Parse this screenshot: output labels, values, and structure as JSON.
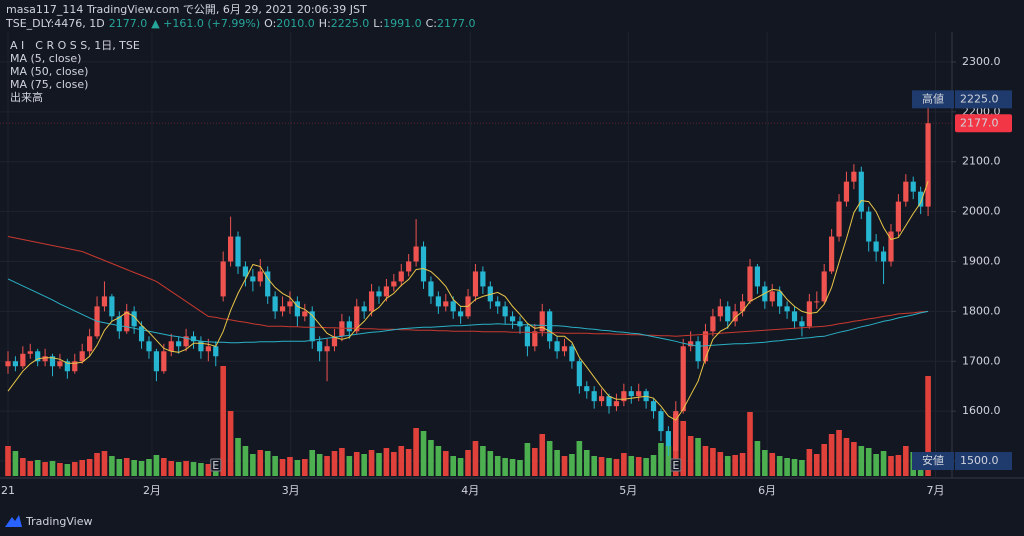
{
  "header": {
    "publisher": "masa117_114 TradingView.com で公開, 6月 29, 2021 20:06:39 JST",
    "symbol": "TSE_DLY:4476, 1D",
    "price": "2177.0",
    "change": "▲ +161.0 (+7.99%)",
    "ohlc": [
      {
        "key": "O:",
        "value": "2010.0"
      },
      {
        "key": "H:",
        "value": "2225.0"
      },
      {
        "key": "L:",
        "value": "1991.0"
      },
      {
        "key": "C:",
        "value": "2177.0"
      }
    ]
  },
  "footer": {
    "brand": "TradingView"
  },
  "chart_data": {
    "type": "candlestick",
    "title": "A I　C R O S S, 1日, TSE",
    "volume_name": "出来高",
    "up_color": "#ef5350",
    "down_color": "#26b6d2",
    "volume_up_color": "#e0413a",
    "volume_down_color": "#4caf50",
    "ylim": [
      1470,
      2364
    ],
    "yticks": [
      {
        "value": 1500,
        "label": "1500.0"
      },
      {
        "value": 1600,
        "label": "1600.0"
      },
      {
        "value": 1700,
        "label": "1700.0"
      },
      {
        "value": 1800,
        "label": "1800.0"
      },
      {
        "value": 1900,
        "label": "1900.0"
      },
      {
        "value": 2000,
        "label": "2000.0"
      },
      {
        "value": 2100,
        "label": "2100.0"
      },
      {
        "value": 2200,
        "label": "2200.0"
      },
      {
        "value": 2300,
        "label": "2300.0"
      }
    ],
    "xticks": [
      {
        "value": 0,
        "label": "21"
      },
      {
        "value": 19.4,
        "label": "2月"
      },
      {
        "value": 38.1,
        "label": "3月"
      },
      {
        "value": 62.3,
        "label": "4月"
      },
      {
        "value": 83.6,
        "label": "5月"
      },
      {
        "value": 102.3,
        "label": "6月"
      },
      {
        "value": 125,
        "label": "7月"
      }
    ],
    "grid": true,
    "events": [
      {
        "index": 28,
        "label": "E"
      },
      {
        "index": 90,
        "label": "E"
      }
    ],
    "high_marker": {
      "label": "高値",
      "value": 2225,
      "value_label": "2225.0",
      "color": "#1f3b6e"
    },
    "low_marker": {
      "label": "安値",
      "value": 1500,
      "value_label": "1500.0",
      "color": "#1f3b6e"
    },
    "last_marker": {
      "value": 2177,
      "value_label": "2177.0",
      "color": "#f23645"
    },
    "candles": [
      [
        1690,
        1720,
        1675,
        1700
      ],
      [
        1700,
        1710,
        1680,
        1690
      ],
      [
        1690,
        1730,
        1685,
        1715
      ],
      [
        1715,
        1735,
        1705,
        1720
      ],
      [
        1720,
        1725,
        1690,
        1700
      ],
      [
        1700,
        1725,
        1690,
        1710
      ],
      [
        1710,
        1715,
        1670,
        1690
      ],
      [
        1690,
        1715,
        1685,
        1700
      ],
      [
        1700,
        1705,
        1665,
        1680
      ],
      [
        1680,
        1715,
        1675,
        1700
      ],
      [
        1700,
        1735,
        1695,
        1720
      ],
      [
        1720,
        1765,
        1710,
        1750
      ],
      [
        1750,
        1830,
        1745,
        1810
      ],
      [
        1810,
        1860,
        1800,
        1830
      ],
      [
        1830,
        1835,
        1780,
        1790
      ],
      [
        1790,
        1800,
        1745,
        1760
      ],
      [
        1760,
        1815,
        1755,
        1800
      ],
      [
        1800,
        1810,
        1755,
        1770
      ],
      [
        1770,
        1780,
        1725,
        1740
      ],
      [
        1740,
        1750,
        1705,
        1720
      ],
      [
        1720,
        1725,
        1660,
        1680
      ],
      [
        1680,
        1735,
        1675,
        1720
      ],
      [
        1720,
        1755,
        1710,
        1740
      ],
      [
        1740,
        1750,
        1715,
        1730
      ],
      [
        1730,
        1765,
        1720,
        1750
      ],
      [
        1750,
        1760,
        1725,
        1740
      ],
      [
        1740,
        1750,
        1705,
        1720
      ],
      [
        1720,
        1745,
        1700,
        1730
      ],
      [
        1730,
        1740,
        1690,
        1710
      ],
      [
        1830,
        1920,
        1820,
        1900
      ],
      [
        1900,
        1990,
        1890,
        1950
      ],
      [
        1950,
        1960,
        1875,
        1890
      ],
      [
        1890,
        1900,
        1850,
        1870
      ],
      [
        1870,
        1885,
        1840,
        1860
      ],
      [
        1860,
        1905,
        1850,
        1880
      ],
      [
        1880,
        1890,
        1815,
        1830
      ],
      [
        1830,
        1840,
        1785,
        1800
      ],
      [
        1800,
        1830,
        1790,
        1810
      ],
      [
        1810,
        1840,
        1795,
        1820
      ],
      [
        1820,
        1830,
        1770,
        1790
      ],
      [
        1790,
        1815,
        1780,
        1800
      ],
      [
        1800,
        1810,
        1725,
        1740
      ],
      [
        1740,
        1750,
        1700,
        1720
      ],
      [
        1720,
        1745,
        1660,
        1730
      ],
      [
        1730,
        1765,
        1720,
        1750
      ],
      [
        1750,
        1795,
        1740,
        1780
      ],
      [
        1780,
        1790,
        1745,
        1760
      ],
      [
        1760,
        1825,
        1755,
        1810
      ],
      [
        1810,
        1820,
        1785,
        1800
      ],
      [
        1800,
        1855,
        1790,
        1840
      ],
      [
        1840,
        1850,
        1815,
        1830
      ],
      [
        1830,
        1865,
        1820,
        1850
      ],
      [
        1850,
        1875,
        1840,
        1860
      ],
      [
        1860,
        1895,
        1850,
        1880
      ],
      [
        1880,
        1915,
        1870,
        1900
      ],
      [
        1900,
        1985,
        1890,
        1930
      ],
      [
        1930,
        1940,
        1845,
        1860
      ],
      [
        1860,
        1870,
        1815,
        1830
      ],
      [
        1830,
        1840,
        1795,
        1810
      ],
      [
        1810,
        1835,
        1800,
        1820
      ],
      [
        1820,
        1830,
        1785,
        1800
      ],
      [
        1800,
        1810,
        1775,
        1790
      ],
      [
        1790,
        1845,
        1785,
        1830
      ],
      [
        1830,
        1895,
        1820,
        1880
      ],
      [
        1880,
        1890,
        1835,
        1850
      ],
      [
        1850,
        1860,
        1805,
        1820
      ],
      [
        1820,
        1830,
        1795,
        1810
      ],
      [
        1810,
        1820,
        1775,
        1790
      ],
      [
        1790,
        1800,
        1765,
        1780
      ],
      [
        1780,
        1790,
        1755,
        1770
      ],
      [
        1770,
        1775,
        1710,
        1730
      ],
      [
        1730,
        1775,
        1720,
        1760
      ],
      [
        1760,
        1815,
        1750,
        1800
      ],
      [
        1800,
        1805,
        1725,
        1740
      ],
      [
        1740,
        1750,
        1705,
        1720
      ],
      [
        1720,
        1745,
        1710,
        1730
      ],
      [
        1730,
        1735,
        1685,
        1700
      ],
      [
        1700,
        1705,
        1635,
        1650
      ],
      [
        1650,
        1660,
        1625,
        1640
      ],
      [
        1640,
        1650,
        1605,
        1620
      ],
      [
        1620,
        1645,
        1610,
        1630
      ],
      [
        1630,
        1635,
        1595,
        1610
      ],
      [
        1610,
        1635,
        1600,
        1620
      ],
      [
        1620,
        1655,
        1610,
        1640
      ],
      [
        1640,
        1650,
        1615,
        1630
      ],
      [
        1630,
        1655,
        1620,
        1640
      ],
      [
        1640,
        1645,
        1605,
        1620
      ],
      [
        1620,
        1625,
        1585,
        1600
      ],
      [
        1600,
        1605,
        1540,
        1560
      ],
      [
        1560,
        1570,
        1510,
        1530
      ],
      [
        1520,
        1620,
        1500,
        1600
      ],
      [
        1600,
        1745,
        1595,
        1730
      ],
      [
        1730,
        1760,
        1720,
        1740
      ],
      [
        1740,
        1750,
        1685,
        1700
      ],
      [
        1700,
        1775,
        1695,
        1760
      ],
      [
        1760,
        1805,
        1750,
        1790
      ],
      [
        1790,
        1825,
        1780,
        1810
      ],
      [
        1810,
        1820,
        1765,
        1780
      ],
      [
        1780,
        1815,
        1770,
        1800
      ],
      [
        1800,
        1835,
        1790,
        1820
      ],
      [
        1820,
        1905,
        1815,
        1890
      ],
      [
        1890,
        1895,
        1835,
        1850
      ],
      [
        1850,
        1860,
        1805,
        1820
      ],
      [
        1820,
        1855,
        1810,
        1840
      ],
      [
        1840,
        1850,
        1795,
        1810
      ],
      [
        1810,
        1820,
        1785,
        1800
      ],
      [
        1800,
        1810,
        1765,
        1780
      ],
      [
        1780,
        1790,
        1750,
        1770
      ],
      [
        1770,
        1835,
        1765,
        1820
      ],
      [
        1820,
        1840,
        1805,
        1820
      ],
      [
        1820,
        1895,
        1815,
        1880
      ],
      [
        1880,
        1965,
        1875,
        1950
      ],
      [
        1950,
        2035,
        1940,
        2020
      ],
      [
        2020,
        2080,
        2010,
        2060
      ],
      [
        2060,
        2095,
        2045,
        2080
      ],
      [
        2080,
        2090,
        1985,
        2000
      ],
      [
        2000,
        2010,
        1920,
        1940
      ],
      [
        1940,
        1955,
        1900,
        1920
      ],
      [
        1920,
        1930,
        1855,
        1900
      ],
      [
        1900,
        1975,
        1890,
        1960
      ],
      [
        1960,
        2035,
        1950,
        2020
      ],
      [
        2020,
        2075,
        2010,
        2060
      ],
      [
        2060,
        2070,
        2025,
        2040
      ],
      [
        2040,
        2050,
        1995,
        2010
      ],
      [
        2010,
        2225,
        1991,
        2177
      ]
    ],
    "volumes": [
      300,
      250,
      180,
      150,
      160,
      140,
      150,
      130,
      120,
      140,
      160,
      170,
      230,
      250,
      200,
      170,
      180,
      160,
      150,
      170,
      210,
      180,
      150,
      140,
      150,
      140,
      130,
      120,
      140,
      1100,
      650,
      380,
      300,
      220,
      260,
      250,
      200,
      170,
      190,
      160,
      170,
      260,
      220,
      200,
      250,
      280,
      200,
      240,
      220,
      260,
      230,
      280,
      240,
      300,
      270,
      480,
      450,
      360,
      300,
      250,
      200,
      180,
      260,
      350,
      300,
      250,
      200,
      180,
      170,
      160,
      330,
      280,
      420,
      350,
      260,
      200,
      220,
      350,
      260,
      200,
      190,
      180,
      170,
      230,
      200,
      190,
      180,
      210,
      330,
      300,
      620,
      550,
      400,
      380,
      300,
      280,
      240,
      200,
      210,
      230,
      640,
      350,
      260,
      230,
      200,
      180,
      170,
      160,
      270,
      220,
      320,
      420,
      460,
      380,
      340,
      300,
      280,
      220,
      250,
      200,
      210,
      300,
      240,
      220,
      1000
    ],
    "series": [
      {
        "name": "MA (5, close)",
        "color": "#e8c547",
        "values": [
          1640,
          1660,
          1680,
          1695,
          1705,
          1707,
          1707,
          1704,
          1696,
          1696,
          1698,
          1710,
          1732,
          1762,
          1780,
          1788,
          1798,
          1790,
          1772,
          1758,
          1742,
          1726,
          1720,
          1718,
          1724,
          1736,
          1736,
          1734,
          1730,
          1760,
          1802,
          1836,
          1864,
          1894,
          1890,
          1866,
          1848,
          1836,
          1828,
          1810,
          1804,
          1792,
          1774,
          1756,
          1748,
          1744,
          1748,
          1766,
          1780,
          1798,
          1808,
          1826,
          1836,
          1852,
          1864,
          1884,
          1886,
          1880,
          1866,
          1850,
          1824,
          1810,
          1810,
          1824,
          1830,
          1834,
          1838,
          1830,
          1810,
          1794,
          1776,
          1766,
          1768,
          1760,
          1750,
          1750,
          1738,
          1708,
          1688,
          1668,
          1648,
          1630,
          1624,
          1624,
          1626,
          1628,
          1630,
          1626,
          1610,
          1590,
          1582,
          1604,
          1632,
          1660,
          1706,
          1744,
          1760,
          1768,
          1788,
          1800,
          1820,
          1828,
          1836,
          1844,
          1842,
          1824,
          1810,
          1800,
          1796,
          1798,
          1814,
          1848,
          1898,
          1946,
          1998,
          2022,
          2020,
          2000,
          1968,
          1944,
          1948,
          1972,
          1996,
          2018,
          2061
        ]
      },
      {
        "name": "MA (50, close)",
        "color": "#2ab0c5",
        "values": [
          1865,
          1858,
          1851,
          1844,
          1837,
          1830,
          1823,
          1815,
          1808,
          1801,
          1794,
          1787,
          1780,
          1777,
          1774,
          1771,
          1769,
          1766,
          1763,
          1760,
          1757,
          1754,
          1751,
          1749,
          1746,
          1743,
          1740,
          1739,
          1738,
          1738,
          1737,
          1737,
          1738,
          1738,
          1739,
          1739,
          1739,
          1740,
          1740,
          1740,
          1740,
          1742,
          1744,
          1746,
          1748,
          1750,
          1752,
          1754,
          1756,
          1758,
          1759,
          1761,
          1763,
          1765,
          1766,
          1767,
          1768,
          1768,
          1769,
          1770,
          1771,
          1771,
          1772,
          1773,
          1774,
          1774,
          1775,
          1774,
          1774,
          1773,
          1773,
          1772,
          1772,
          1771,
          1771,
          1770,
          1768,
          1767,
          1765,
          1764,
          1762,
          1761,
          1759,
          1758,
          1756,
          1755,
          1752,
          1749,
          1746,
          1743,
          1740,
          1736,
          1733,
          1730,
          1731,
          1732,
          1733,
          1734,
          1735,
          1735,
          1736,
          1737,
          1738,
          1740,
          1741,
          1743,
          1744,
          1746,
          1747,
          1749,
          1750,
          1754,
          1758,
          1761,
          1765,
          1769,
          1772,
          1776,
          1780,
          1783,
          1787,
          1790,
          1793,
          1797,
          1800
        ]
      },
      {
        "name": "MA (75, close)",
        "color": "#c8392f",
        "values": [
          1950,
          1947,
          1944,
          1941,
          1938,
          1935,
          1932,
          1929,
          1926,
          1923,
          1920,
          1914,
          1908,
          1902,
          1896,
          1890,
          1884,
          1878,
          1872,
          1866,
          1860,
          1850,
          1840,
          1830,
          1820,
          1810,
          1800,
          1790,
          1788,
          1785,
          1783,
          1780,
          1778,
          1775,
          1773,
          1770,
          1770,
          1770,
          1769,
          1769,
          1768,
          1768,
          1768,
          1767,
          1767,
          1766,
          1766,
          1766,
          1765,
          1765,
          1764,
          1764,
          1764,
          1763,
          1763,
          1762,
          1762,
          1762,
          1761,
          1761,
          1760,
          1760,
          1760,
          1760,
          1759,
          1759,
          1759,
          1759,
          1758,
          1758,
          1758,
          1757,
          1757,
          1757,
          1757,
          1756,
          1756,
          1756,
          1756,
          1755,
          1755,
          1755,
          1754,
          1754,
          1753,
          1753,
          1752,
          1752,
          1751,
          1751,
          1750,
          1751,
          1752,
          1753,
          1754,
          1755,
          1756,
          1757,
          1758,
          1759,
          1760,
          1761,
          1762,
          1763,
          1764,
          1765,
          1766,
          1767,
          1768,
          1769,
          1770,
          1772,
          1775,
          1777,
          1780,
          1782,
          1785,
          1787,
          1790,
          1792,
          1795,
          1796,
          1797,
          1799,
          1800
        ]
      }
    ]
  }
}
